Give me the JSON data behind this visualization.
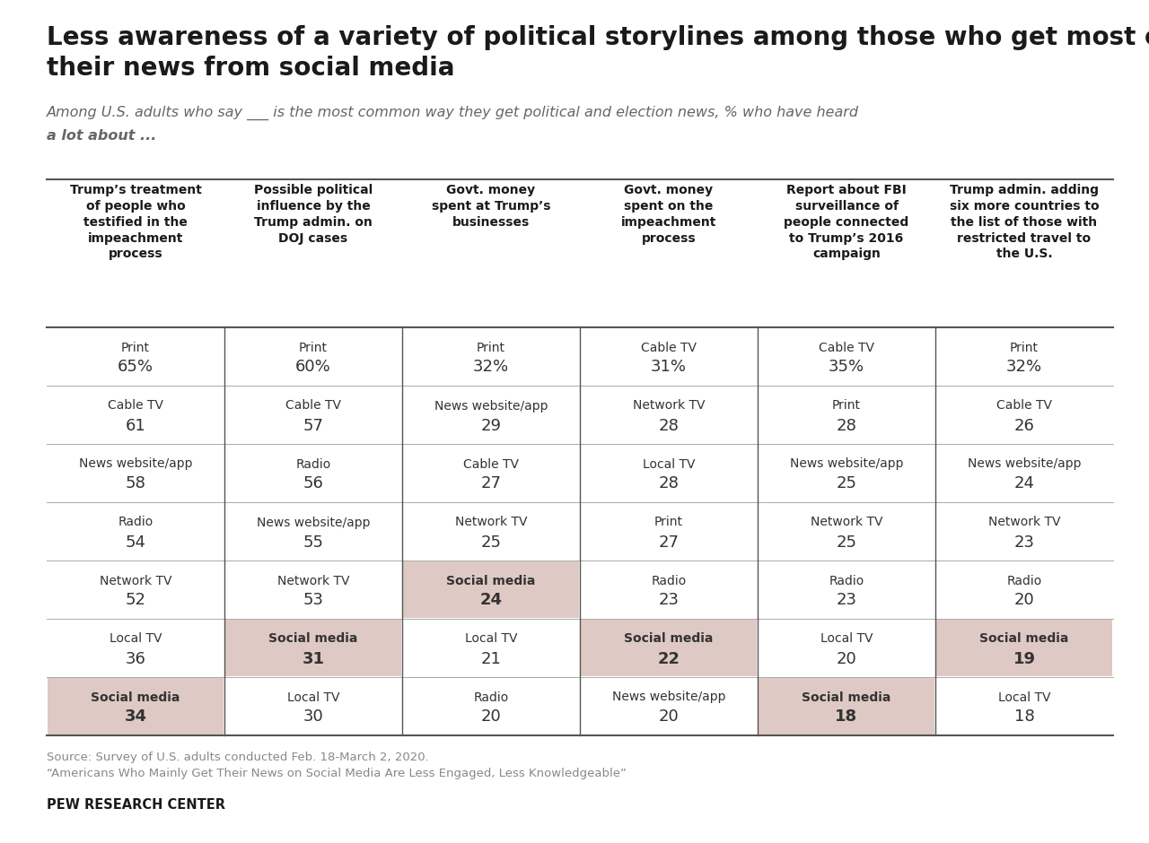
{
  "title": "Less awareness of a variety of political storylines among those who get most of\ntheir news from social media",
  "subtitle_line1": "Among U.S. adults who say ___ is the most common way they get political and election news, % who have heard",
  "subtitle_line2": "a lot about ...",
  "columns": [
    "Trump’s treatment\nof people who\ntestified in the\nimpeachment\nprocess",
    "Possible political\ninfluence by the\nTrump admin. on\nDOJ cases",
    "Govt. money\nspent at Trump’s\nbusinesses",
    "Govt. money\nspent on the\nimpeachment\nprocess",
    "Report about FBI\nsurveillance of\npeople connected\nto Trump’s 2016\ncampaign",
    "Trump admin. adding\nsix more countries to\nthe list of those with\nrestricted travel to\nthe U.S."
  ],
  "rows": [
    [
      [
        "Print",
        "65%",
        false
      ],
      [
        "Print",
        "60%",
        false
      ],
      [
        "Print",
        "32%",
        false
      ],
      [
        "Cable TV",
        "31%",
        false
      ],
      [
        "Cable TV",
        "35%",
        false
      ],
      [
        "Print",
        "32%",
        false
      ]
    ],
    [
      [
        "Cable TV",
        "61",
        false
      ],
      [
        "Cable TV",
        "57",
        false
      ],
      [
        "News website/app",
        "29",
        false
      ],
      [
        "Network TV",
        "28",
        false
      ],
      [
        "Print",
        "28",
        false
      ],
      [
        "Cable TV",
        "26",
        false
      ]
    ],
    [
      [
        "News website/app",
        "58",
        false
      ],
      [
        "Radio",
        "56",
        false
      ],
      [
        "Cable TV",
        "27",
        false
      ],
      [
        "Local TV",
        "28",
        false
      ],
      [
        "News website/app",
        "25",
        false
      ],
      [
        "News website/app",
        "24",
        false
      ]
    ],
    [
      [
        "Radio",
        "54",
        false
      ],
      [
        "News website/app",
        "55",
        false
      ],
      [
        "Network TV",
        "25",
        false
      ],
      [
        "Print",
        "27",
        false
      ],
      [
        "Network TV",
        "25",
        false
      ],
      [
        "Network TV",
        "23",
        false
      ]
    ],
    [
      [
        "Network TV",
        "52",
        false
      ],
      [
        "Network TV",
        "53",
        false
      ],
      [
        "Social media",
        "24",
        true
      ],
      [
        "Radio",
        "23",
        false
      ],
      [
        "Radio",
        "23",
        false
      ],
      [
        "Radio",
        "20",
        false
      ]
    ],
    [
      [
        "Local TV",
        "36",
        false
      ],
      [
        "Social media",
        "31",
        true
      ],
      [
        "Local TV",
        "21",
        false
      ],
      [
        "Social media",
        "22",
        true
      ],
      [
        "Local TV",
        "20",
        false
      ],
      [
        "Social media",
        "19",
        true
      ]
    ],
    [
      [
        "Social media",
        "34",
        true
      ],
      [
        "Local TV",
        "30",
        false
      ],
      [
        "Radio",
        "20",
        false
      ],
      [
        "News website/app",
        "20",
        false
      ],
      [
        "Social media",
        "18",
        true
      ],
      [
        "Local TV",
        "18",
        false
      ]
    ]
  ],
  "source_line1": "Source: Survey of U.S. adults conducted Feb. 18-March 2, 2020.",
  "source_line2": "“Americans Who Mainly Get Their News on Social Media Are Less Engaged, Less Knowledgeable”",
  "footer": "PEW RESEARCH CENTER",
  "highlight_color": "#dfc9c4",
  "bg_color": "#ffffff",
  "text_color": "#333333",
  "header_color": "#1a1a1a",
  "divider_color": "#aaaaaa",
  "strong_line_color": "#555555"
}
